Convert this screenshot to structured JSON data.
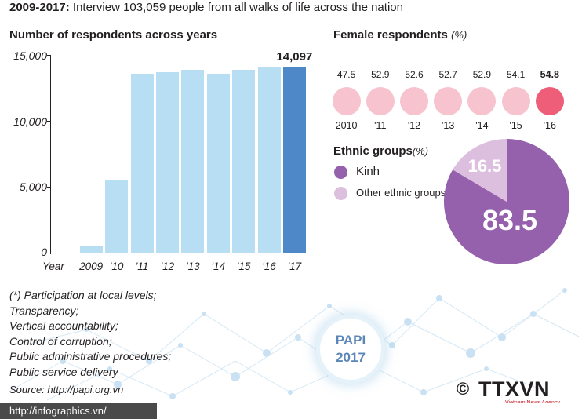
{
  "headline": {
    "bold": "2009-2017:",
    "text": " Interview 103,059 people from all walks of life across the nation"
  },
  "respondents": {
    "title": "Number of respondents across years",
    "yticks": [
      "15,000",
      "10,000",
      "5,000",
      "0"
    ],
    "xlabel_lead": "Year",
    "highlight_label": "14,097"
  },
  "female": {
    "title": "Female respondents",
    "unit": "(%)",
    "values": [
      "47.5",
      "52.9",
      "52.6",
      "52.7",
      "52.9",
      "54.1",
      "54.8"
    ],
    "years": [
      "2010",
      "'11",
      "'12",
      "'13",
      "'14",
      "'15",
      "'16"
    ]
  },
  "ethnic": {
    "title": "Ethnic groups",
    "unit": "(%)",
    "legend": [
      "Kinh",
      "Other ethnic groups"
    ],
    "slice_labels": [
      "83.5",
      "16.5"
    ]
  },
  "notes": [
    "(*) Participation at local levels;",
    "Transparency;",
    "Vertical accountability;",
    "Control of corruption;",
    "Public administrative procedures;",
    "Public service delivery"
  ],
  "source": "Source: http://papi.org.vn",
  "badge": {
    "line1": "PAPI",
    "line2": "2017"
  },
  "footer": "http://infographics.vn/",
  "logo": {
    "text": "TTXVN",
    "sub": "Vietnam News Agency",
    "copyright": "©"
  },
  "colors": {
    "bar": "#b8def4",
    "bar_highlight": "#4f88c8",
    "female": "#f7c3ce",
    "female_highlight": "#ee5e78",
    "kinh": "#9560ac",
    "other": "#dcbfdf"
  },
  "chart_data": [
    {
      "type": "bar",
      "title": "Number of respondents across years",
      "categories": [
        "2009",
        "'10",
        "'11",
        "'12",
        "'13",
        "'14",
        "'15",
        "'16",
        "'17"
      ],
      "values": [
        550,
        5500,
        13600,
        13700,
        13850,
        13550,
        13900,
        14050,
        14097
      ],
      "ylim": [
        0,
        15000
      ],
      "grid": false
    },
    {
      "type": "bar",
      "title": "Female respondents (%)",
      "categories": [
        "2010",
        "'11",
        "'12",
        "'13",
        "'14",
        "'15",
        "'16"
      ],
      "values": [
        47.5,
        52.9,
        52.6,
        52.7,
        52.9,
        54.1,
        54.8
      ]
    },
    {
      "type": "pie",
      "title": "Ethnic groups(%)",
      "categories": [
        "Kinh",
        "Other ethnic groups"
      ],
      "values": [
        83.5,
        16.5
      ]
    }
  ]
}
